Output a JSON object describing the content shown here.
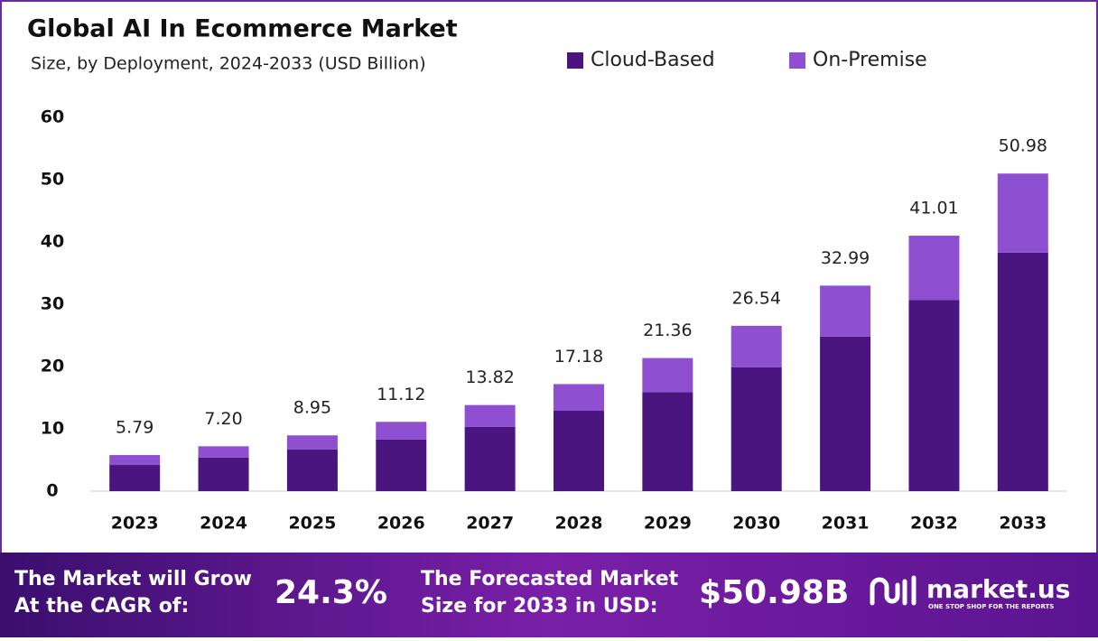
{
  "chart_data": {
    "type": "stacked_bar",
    "title": "Global AI In Ecommerce Market",
    "subtitle": "Size, by Deployment, 2024-2033 (USD Billion)",
    "categories": [
      "2023",
      "2024",
      "2025",
      "2026",
      "2027",
      "2028",
      "2029",
      "2030",
      "2031",
      "2032",
      "2033"
    ],
    "series": [
      {
        "name": "Cloud-Based",
        "color": "#4b1580",
        "values": [
          4.2,
          5.4,
          6.7,
          8.3,
          10.3,
          12.9,
          15.9,
          19.9,
          24.8,
          30.7,
          38.3
        ]
      },
      {
        "name": "On-Premise",
        "color": "#8e4fd0",
        "values": [
          1.59,
          1.8,
          2.25,
          2.82,
          3.52,
          4.28,
          5.46,
          6.64,
          8.19,
          10.31,
          12.68
        ]
      }
    ],
    "totals": [
      5.79,
      7.2,
      8.95,
      11.12,
      13.82,
      17.18,
      21.36,
      26.54,
      32.99,
      41.01,
      50.98
    ],
    "total_labels": [
      "5.79",
      "7.20",
      "8.95",
      "11.12",
      "13.82",
      "17.18",
      "21.36",
      "26.54",
      "32.99",
      "41.01",
      "50.98"
    ],
    "ylim": [
      0,
      60
    ],
    "yticks": [
      0,
      10,
      20,
      30,
      40,
      50,
      60
    ],
    "legend": "top"
  },
  "footer": {
    "cagr_text": [
      "The Market will Grow",
      "At the CAGR of:"
    ],
    "cagr_value": "24.3%",
    "forecast_text": [
      "The Forecasted Market",
      "Size for 2033 in USD:"
    ],
    "forecast_value": "$50.98B",
    "brand": "market.us",
    "tagline": "ONE STOP SHOP FOR THE REPORTS"
  }
}
